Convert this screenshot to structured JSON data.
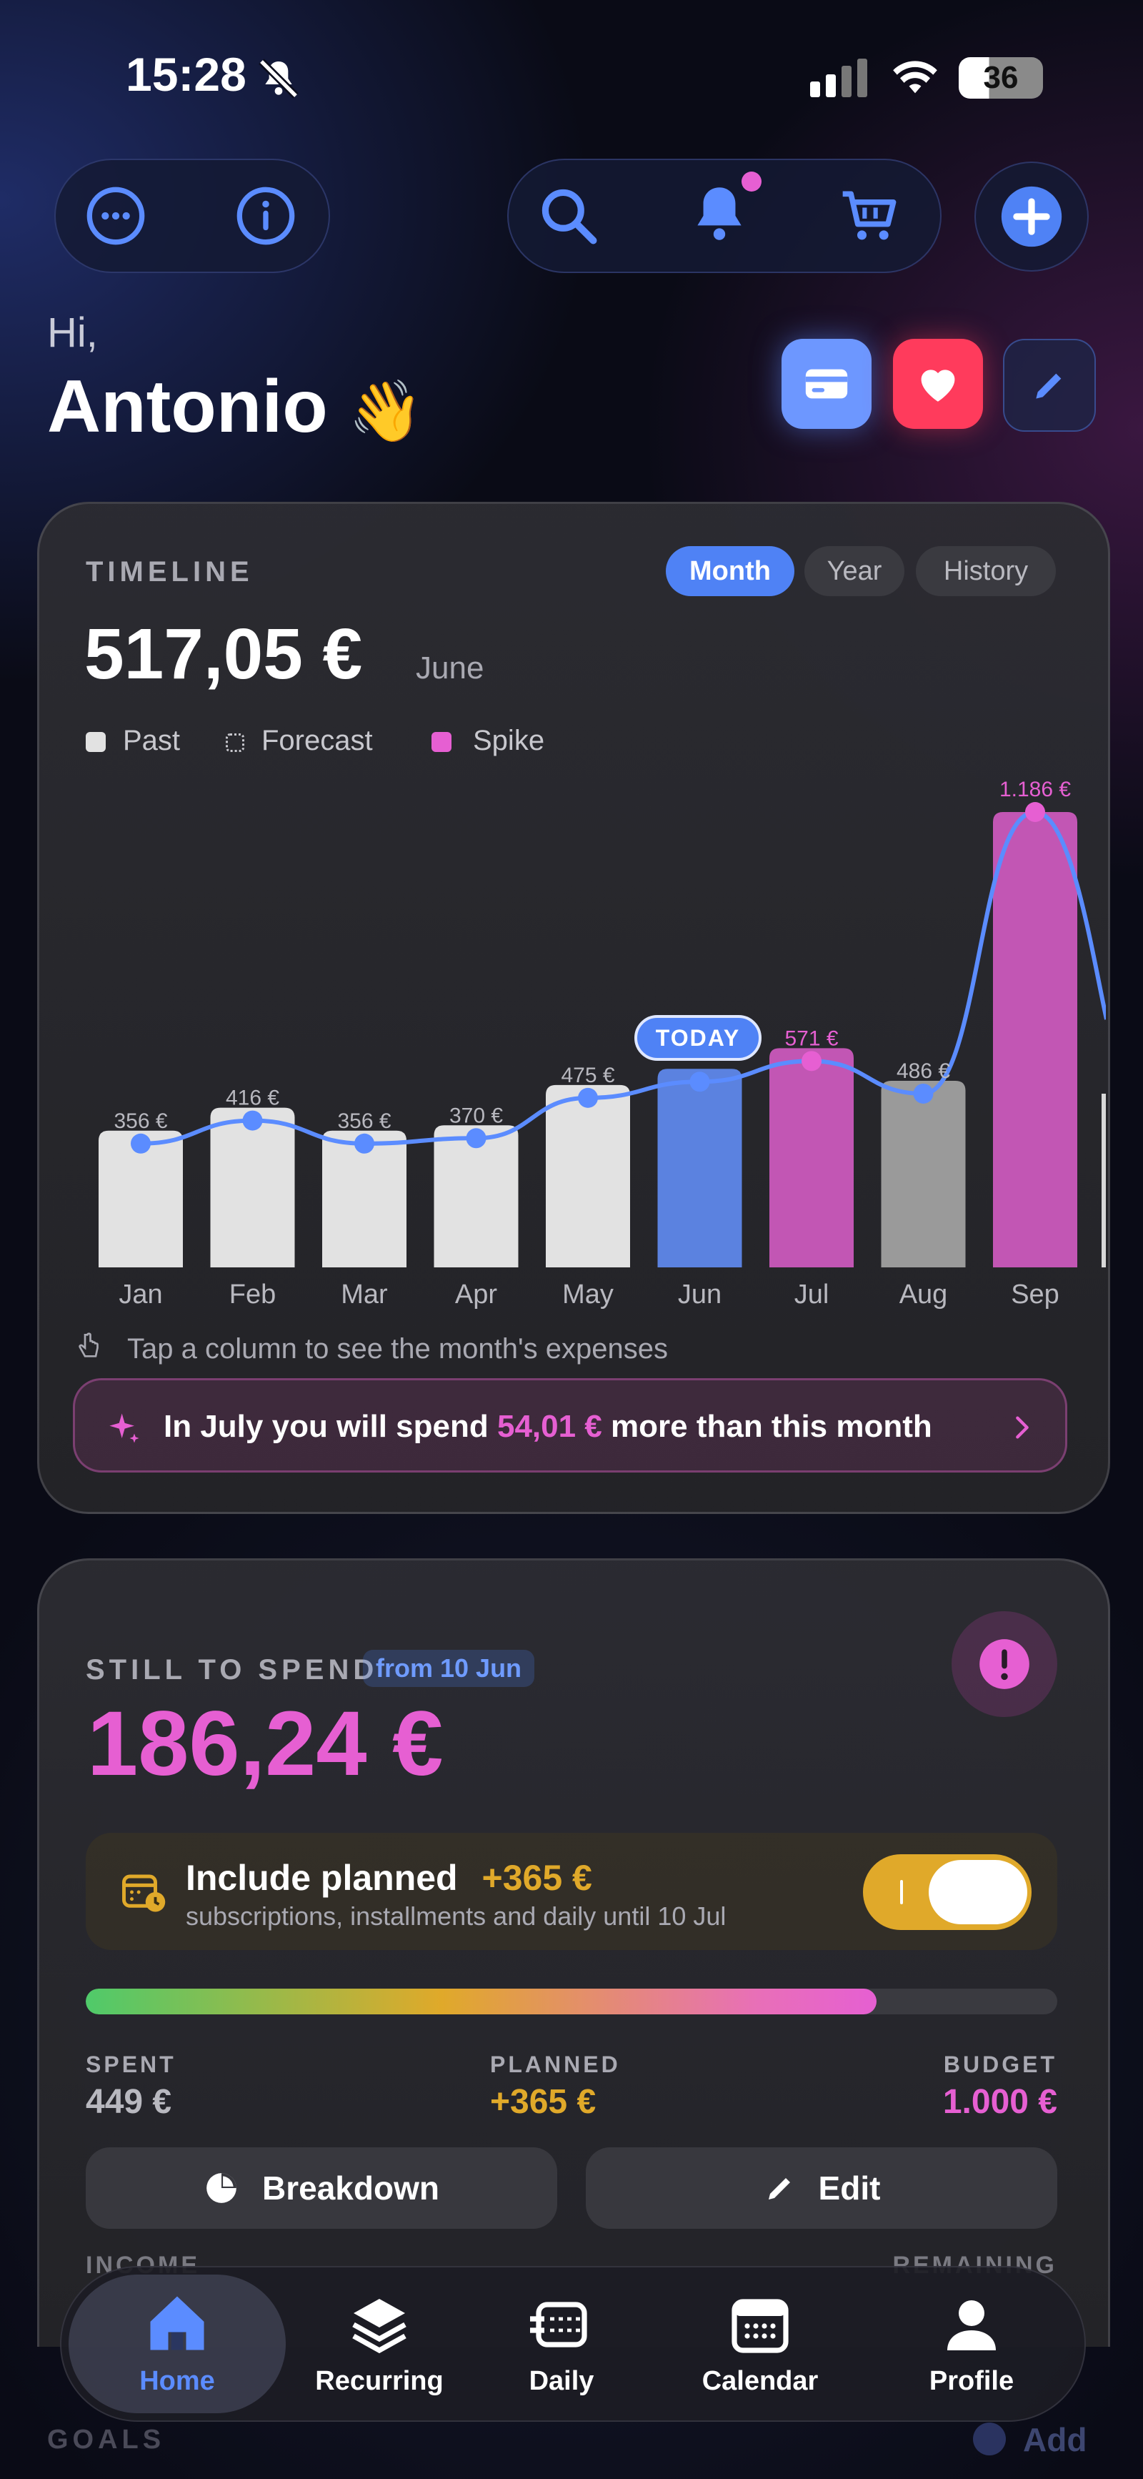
{
  "status_bar": {
    "time": "15:28",
    "battery": "36"
  },
  "greeting": {
    "hi": "Hi,",
    "name": "Antonio",
    "emoji": "👋"
  },
  "timeline": {
    "label": "TIMELINE",
    "tabs": [
      "Month",
      "Year",
      "History"
    ],
    "active_tab": "Month",
    "amount": "517,05 €",
    "period": "June",
    "legend": [
      "Past",
      "Forecast",
      "Spike"
    ],
    "today_badge": "TODAY",
    "hint": "Tap a column to see the month's expenses",
    "insight": {
      "prefix": "In July you will spend ",
      "highlight": "54,01 €",
      "suffix": " more than this month"
    }
  },
  "chart_data": {
    "type": "bar",
    "categories": [
      "Jan",
      "Feb",
      "Mar",
      "Apr",
      "May",
      "Jun",
      "Jul",
      "Aug",
      "Sep"
    ],
    "values": [
      356,
      416,
      356,
      370,
      475,
      517.05,
      571,
      486,
      1186
    ],
    "value_labels": [
      "356 €",
      "416 €",
      "356 €",
      "370 €",
      "475 €",
      "",
      "571 €",
      "486 €",
      "1.186 €"
    ],
    "kinds": [
      "past",
      "past",
      "past",
      "past",
      "past",
      "today",
      "spike",
      "forecast",
      "spike"
    ],
    "colors": {
      "past": "#e2e2e2",
      "today": "#5b82e0",
      "spike": "#c256b4",
      "forecast": "#9a9a9a",
      "line": "#5b8cff",
      "spike_label": "#e65fd2",
      "label": "#b8b8bf"
    },
    "ylim": [
      0,
      1186
    ]
  },
  "still_to_spend": {
    "label": "STILL TO SPEND",
    "from_badge": "from 10 Jun",
    "amount": "186,24 €",
    "include_planned": {
      "title": "Include planned",
      "amount": "+365 €",
      "subtitle": "subscriptions, installments and daily until 10 Jul",
      "toggle_on": true
    },
    "progress": {
      "spent_fraction": 0.449,
      "planned_end_fraction": 0.814
    },
    "stats": {
      "spent": {
        "label": "SPENT",
        "value": "449 €"
      },
      "planned": {
        "label": "PLANNED",
        "value": "+365 €"
      },
      "budget": {
        "label": "BUDGET",
        "value": "1.000 €"
      }
    },
    "buttons": {
      "breakdown": "Breakdown",
      "edit": "Edit"
    },
    "cutoff": {
      "income": "INCOME",
      "remaining": "REMAINING"
    }
  },
  "goals": {
    "label": "GOALS",
    "add": "Add"
  },
  "nav": {
    "items": [
      {
        "label": "Home",
        "icon": "home-icon",
        "active": true
      },
      {
        "label": "Recurring",
        "icon": "layers-icon",
        "active": false
      },
      {
        "label": "Daily",
        "icon": "daily-icon",
        "active": false
      },
      {
        "label": "Calendar",
        "icon": "calendar-icon",
        "active": false
      },
      {
        "label": "Profile",
        "icon": "profile-icon",
        "active": false
      }
    ]
  },
  "colors": {
    "accent": "#5b8cff",
    "pink": "#e65fd2",
    "gold": "#e0a92a",
    "danger": "#ff3b5c"
  }
}
